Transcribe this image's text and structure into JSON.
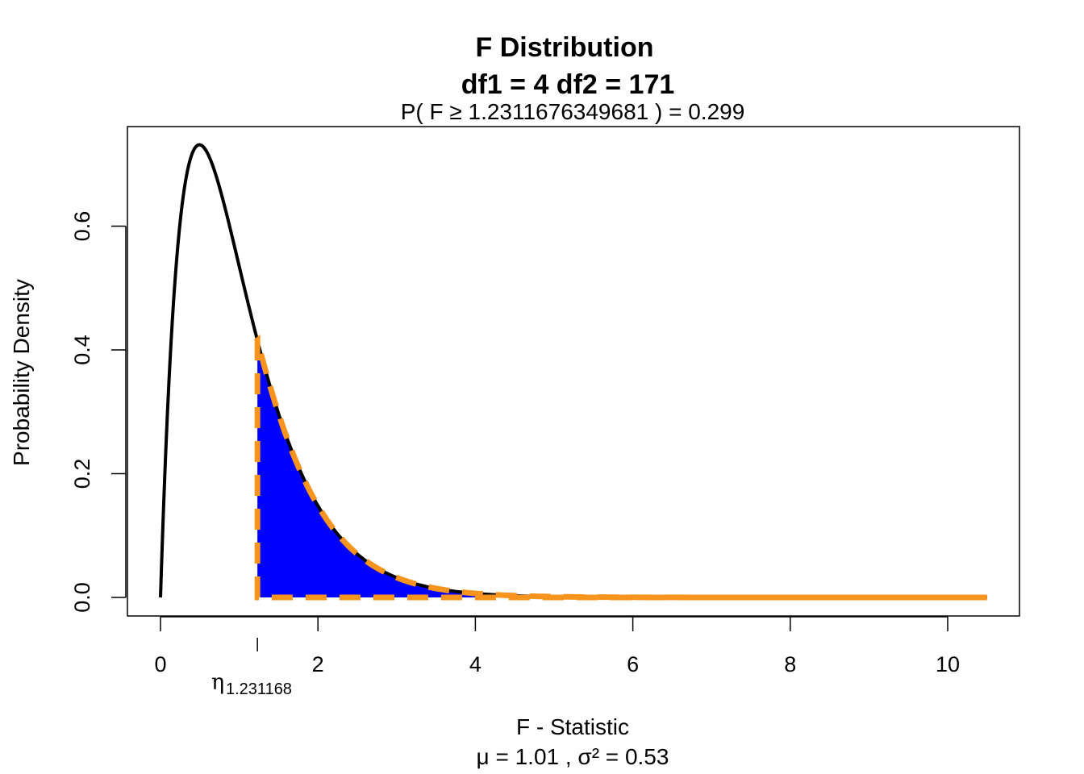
{
  "chart_data": {
    "type": "area",
    "title": "F Distribution",
    "title_line2": "df1  =  4   df2  =  171",
    "subtitle": "P(  F  ≥  1.2311676349681  ) = 0.299",
    "xlabel": "F - Statistic",
    "xlabel_line2": "μ =  1.01 , σ² =  0.53",
    "ylabel": "Probability Density",
    "df1": 4,
    "df2": 171,
    "f_value": 1.2311676349681,
    "p_value": 0.299,
    "mean": 1.01,
    "variance": 0.53,
    "xlim": [
      0,
      10.5
    ],
    "ylim": [
      0,
      0.73
    ],
    "x_ticks": [
      0,
      2,
      4,
      6,
      8,
      10
    ],
    "x_tick_labels": [
      "0",
      "2",
      "4",
      "6",
      "8",
      "10"
    ],
    "y_ticks": [
      0.0,
      0.2,
      0.4,
      0.6
    ],
    "y_tick_labels": [
      "0.0",
      "0.2",
      "0.4",
      "0.6"
    ],
    "marker": {
      "symbol": "η",
      "subscript": "1.231168",
      "x": 1.231168
    },
    "density_curve_color": "#000000",
    "shade_color": "#0000ff",
    "outline_color": "#f7941d",
    "grid": false,
    "legend": "none"
  }
}
